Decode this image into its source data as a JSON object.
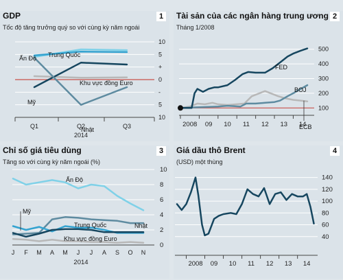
{
  "panels": {
    "p1": {
      "title": "GDP",
      "number": "1",
      "subtitle": "Tốc độ tăng trưởng quý so với cùng kỳ năm ngoái"
    },
    "p2": {
      "title": "Tài sản của các ngân hàng trung ương",
      "number": "2",
      "subtitle": "Tháng 1/2008"
    },
    "p3": {
      "title": "Chỉ số giá tiêu dùng",
      "number": "3",
      "subtitle": "Tăng so với cùng kỳ năm ngoái (%)"
    },
    "p4": {
      "title": "Giá dầu thô Brent",
      "number": "4",
      "subtitle": "(USD) một thùng"
    }
  },
  "colors": {
    "dark": "#16465f",
    "sky": "#7fd1e8",
    "mid": "#5e8ba0",
    "gray": "#b8b8b8",
    "brightblue": "#34a3d0",
    "red": "#c8514a",
    "bg": "#dbe3e9"
  },
  "chart_data": [
    {
      "type": "line",
      "title": "GDP",
      "x": [
        "Q1",
        "Q2",
        "Q3"
      ],
      "x_year_label": "2014",
      "ylim": [
        -10,
        10
      ],
      "y_ticks": [
        "10",
        "5",
        "+",
        "0",
        "-",
        "5",
        "10"
      ],
      "inverted_scale_below_zero": true,
      "series": [
        {
          "name": "Ấn Độ",
          "values": [
            6.0,
            8.0,
            7.8
          ],
          "color": "#7fd1e8"
        },
        {
          "name": "Trung Quốc",
          "values": [
            6.4,
            7.4,
            7.3
          ],
          "color": "#34a3d0"
        },
        {
          "name": "Khu vực đồng Euro",
          "values": [
            0.9,
            0.5,
            0.6
          ],
          "color": "#b8b8b8"
        },
        {
          "name": "Mỹ",
          "values": [
            -2.0,
            4.5,
            4.0
          ],
          "color": "#16465f"
        },
        {
          "name": "Nhật",
          "values": [
            5.8,
            -6.7,
            -2.0
          ],
          "color": "#5e8ba0"
        }
      ]
    },
    {
      "type": "line",
      "title": "Tài sản của các ngân hàng trung ương",
      "x_ticks": [
        "2008",
        "09",
        "10",
        "11",
        "12",
        "13",
        "14"
      ],
      "ylim": [
        50,
        550
      ],
      "y_ticks": [
        "100",
        "200",
        "300",
        "400",
        "500"
      ],
      "baseline": 100,
      "series": [
        {
          "name": "FED",
          "color": "#16465f",
          "x": [
            2008.0,
            2008.6,
            2008.75,
            2008.9,
            2009.2,
            2009.5,
            2009.8,
            2010.0,
            2010.5,
            2010.9,
            2011.3,
            2011.6,
            2012.0,
            2012.5,
            2012.9,
            2013.3,
            2013.7,
            2014.0,
            2014.4,
            2014.75
          ],
          "values": [
            100,
            100,
            200,
            230,
            210,
            230,
            240,
            240,
            255,
            290,
            330,
            345,
            340,
            340,
            370,
            410,
            450,
            470,
            490,
            505
          ]
        },
        {
          "name": "BOJ",
          "color": "#5e8ba0",
          "x": [
            2008.0,
            2009.0,
            2010.0,
            2010.5,
            2011.2,
            2011.5,
            2012.0,
            2012.5,
            2013.0,
            2013.3,
            2013.7,
            2014.0,
            2014.4,
            2014.75
          ],
          "values": [
            100,
            105,
            110,
            115,
            110,
            130,
            130,
            135,
            140,
            150,
            180,
            200,
            230,
            255
          ]
        },
        {
          "name": "ECB",
          "color": "#b8b8b8",
          "x": [
            2008.0,
            2008.5,
            2008.9,
            2009.3,
            2009.7,
            2010.0,
            2010.5,
            2011.0,
            2011.4,
            2011.8,
            2012.2,
            2012.5,
            2012.8,
            2013.2,
            2013.6,
            2014.0,
            2014.4,
            2014.75
          ],
          "values": [
            100,
            110,
            130,
            125,
            135,
            125,
            120,
            125,
            130,
            180,
            200,
            215,
            200,
            180,
            165,
            155,
            150,
            145
          ]
        }
      ]
    },
    {
      "type": "line",
      "title": "Chỉ số giá tiêu dùng",
      "x_ticks": [
        "J",
        "F",
        "M",
        "A",
        "M",
        "J",
        "J",
        "A",
        "S",
        "O",
        "N"
      ],
      "x_year_label": "2014",
      "ylim": [
        0,
        10
      ],
      "y_ticks": [
        "0",
        "2",
        "4",
        "6",
        "8",
        "10"
      ],
      "series": [
        {
          "name": "Ấn Độ",
          "color": "#7fd1e8",
          "values": [
            8.8,
            8.0,
            8.3,
            8.6,
            8.3,
            7.5,
            8.0,
            7.8,
            6.5,
            5.5,
            4.6
          ]
        },
        {
          "name": "Nhật",
          "color": "#5e8ba0",
          "values": [
            1.4,
            1.5,
            1.6,
            3.4,
            3.7,
            3.6,
            3.4,
            3.3,
            3.2,
            2.9,
            2.9
          ]
        },
        {
          "name": "Trung Quốc",
          "color": "#34a3d0",
          "values": [
            2.5,
            2.0,
            2.4,
            1.8,
            2.5,
            2.3,
            2.3,
            2.0,
            1.6,
            1.6,
            1.6
          ]
        },
        {
          "name": "Mỹ",
          "color": "#16465f",
          "values": [
            1.6,
            1.1,
            1.5,
            2.0,
            2.1,
            2.1,
            2.0,
            1.7,
            1.7,
            1.7,
            1.7
          ]
        },
        {
          "name": "Khu vực đồng Euro",
          "color": "#b8b8b8",
          "values": [
            0.8,
            0.7,
            0.5,
            0.7,
            0.5,
            0.5,
            0.4,
            0.4,
            0.3,
            0.4,
            0.3
          ]
        }
      ]
    },
    {
      "type": "line",
      "title": "Giá dầu thô Brent",
      "x_ticks": [
        "2008",
        "09",
        "10",
        "11",
        "12",
        "13",
        "14"
      ],
      "ylim": [
        20,
        150
      ],
      "y_ticks": [
        "40",
        "60",
        "80",
        "100",
        "120",
        "140"
      ],
      "series": [
        {
          "name": "Brent",
          "color": "#16465f",
          "x": [
            2007.5,
            2007.75,
            2008.0,
            2008.25,
            2008.5,
            2008.65,
            2008.85,
            2009.0,
            2009.2,
            2009.5,
            2009.75,
            2010.0,
            2010.4,
            2010.7,
            2011.0,
            2011.3,
            2011.6,
            2011.9,
            2012.2,
            2012.5,
            2012.8,
            2013.1,
            2013.4,
            2013.7,
            2014.0,
            2014.3,
            2014.5,
            2014.7,
            2014.88
          ],
          "values": [
            95,
            85,
            95,
            115,
            140,
            110,
            60,
            42,
            45,
            70,
            75,
            78,
            80,
            78,
            95,
            120,
            112,
            108,
            122,
            95,
            112,
            115,
            102,
            112,
            108,
            108,
            112,
            90,
            62
          ]
        }
      ]
    }
  ]
}
